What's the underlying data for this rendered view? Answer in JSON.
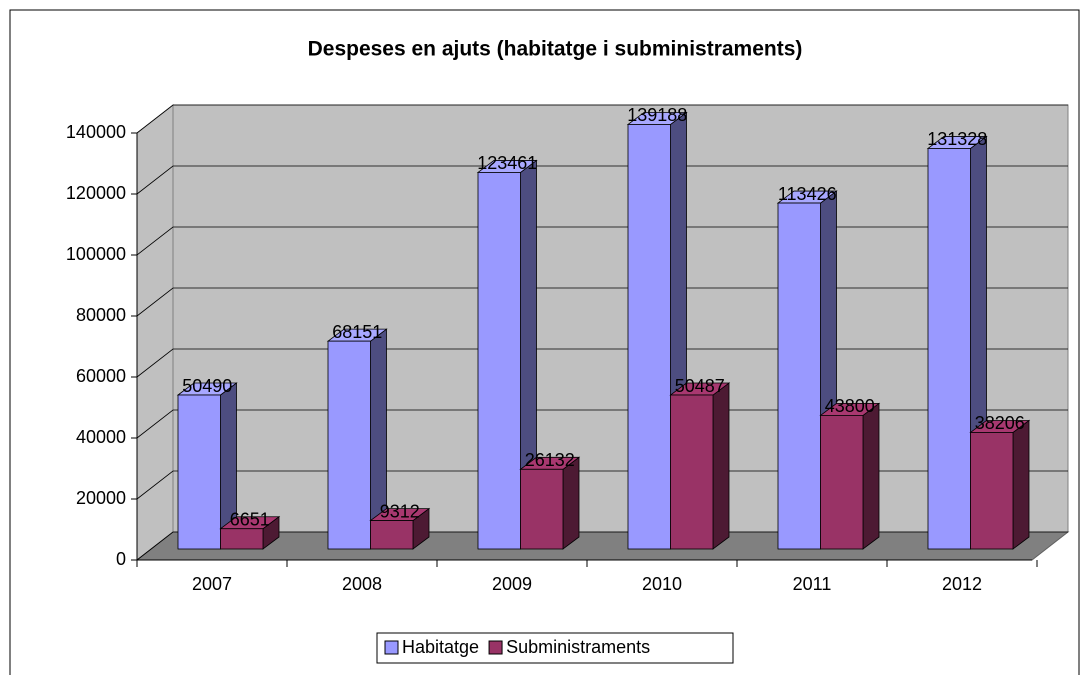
{
  "chart_data": {
    "type": "bar",
    "title": "Despeses en ajuts (habitatge i subministraments)",
    "categories": [
      "2007",
      "2008",
      "2009",
      "2010",
      "2011",
      "2012"
    ],
    "series": [
      {
        "name": "Habitatge",
        "color": "#9999ff",
        "values": [
          50490,
          68151,
          123461,
          139188,
          113426,
          131328
        ]
      },
      {
        "name": "Subministraments",
        "color": "#993366",
        "values": [
          6651,
          9312,
          26132,
          50487,
          43800,
          38206
        ]
      }
    ],
    "ylim": [
      0,
      140000
    ],
    "yticks": [
      0,
      20000,
      40000,
      60000,
      80000,
      100000,
      120000,
      140000
    ],
    "grid": true,
    "legend": "bottom"
  }
}
